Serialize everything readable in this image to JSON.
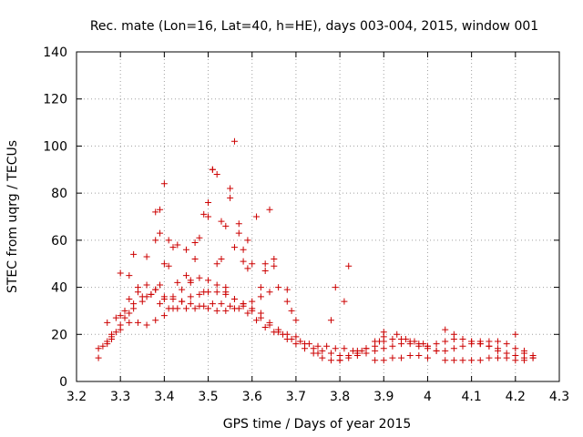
{
  "chart_data": {
    "type": "scatter",
    "title": "Rec. mate (Lon=16, Lat=40, h=HE), days 003-004, 2015, window 001",
    "xlabel": "GPS time / Days of year 2015",
    "ylabel": "STEC from uqrg / TECUs",
    "xlim": [
      3.2,
      4.3
    ],
    "ylim": [
      0,
      140
    ],
    "xticks": [
      "3.2",
      "3.3",
      "3.4",
      "3.5",
      "3.6",
      "3.7",
      "3.8",
      "3.9",
      "4",
      "4.1",
      "4.2",
      "4.3"
    ],
    "yticks": [
      "0",
      "20",
      "40",
      "60",
      "80",
      "100",
      "120",
      "140"
    ],
    "marker": "+",
    "color": "#cc0000",
    "grid": true,
    "series": [
      {
        "name": "STEC",
        "x": [
          3.25,
          3.25,
          3.26,
          3.27,
          3.28,
          3.29,
          3.3,
          3.31,
          3.32,
          3.33,
          3.35,
          3.37,
          3.38,
          3.39,
          3.4,
          3.42,
          3.44,
          3.46,
          3.48,
          3.5,
          3.52,
          3.54,
          3.56,
          3.58,
          3.6,
          3.62,
          3.64,
          3.66,
          3.68,
          3.7,
          3.27,
          3.28,
          3.3,
          3.32,
          3.34,
          3.36,
          3.38,
          3.4,
          3.42,
          3.44,
          3.46,
          3.48,
          3.5,
          3.52,
          3.54,
          3.56,
          3.58,
          3.6,
          3.62,
          3.64,
          3.66,
          3.68,
          3.7,
          3.72,
          3.74,
          3.76,
          3.78,
          3.8,
          3.27,
          3.29,
          3.31,
          3.33,
          3.35,
          3.37,
          3.39,
          3.41,
          3.43,
          3.45,
          3.47,
          3.49,
          3.51,
          3.53,
          3.55,
          3.57,
          3.59,
          3.61,
          3.63,
          3.65,
          3.67,
          3.69,
          3.71,
          3.73,
          3.75,
          3.77,
          3.79,
          3.81,
          3.83,
          3.85,
          3.28,
          3.3,
          3.32,
          3.34,
          3.36,
          3.38,
          3.4,
          3.42,
          3.44,
          3.46,
          3.48,
          3.5,
          3.52,
          3.54,
          3.56,
          3.58,
          3.6,
          3.62,
          3.64,
          3.66,
          3.68,
          3.7,
          3.72,
          3.74,
          3.76,
          3.78,
          3.8,
          3.82,
          3.84,
          3.86,
          3.88,
          3.9,
          3.3,
          3.33,
          3.36,
          3.38,
          3.39,
          3.4,
          3.41,
          3.43,
          3.45,
          3.47,
          3.49,
          3.5,
          3.51,
          3.52,
          3.53,
          3.54,
          3.55,
          3.56,
          3.57,
          3.58,
          3.59,
          3.6,
          3.62,
          3.63,
          3.64,
          3.65,
          3.68,
          3.69,
          3.75,
          3.82,
          3.81,
          3.79,
          3.78,
          3.38,
          3.39,
          3.4,
          3.41,
          3.42,
          3.5,
          3.51,
          3.52,
          3.53,
          3.54,
          3.55,
          3.57,
          3.56,
          3.58,
          3.59,
          3.61,
          3.63,
          3.65,
          3.47,
          3.48,
          3.49,
          3.43,
          3.45,
          3.46,
          3.36,
          3.34,
          3.32,
          3.8,
          3.82,
          3.84,
          3.86,
          3.88,
          3.9,
          3.92,
          3.94,
          3.96,
          3.98,
          4.0,
          4.02,
          4.04,
          4.06,
          4.08,
          4.1,
          4.12,
          4.14,
          4.16,
          4.18,
          4.2,
          4.22,
          4.24,
          3.84,
          3.86,
          3.88,
          3.9,
          3.92,
          3.94,
          3.96,
          3.98,
          4.0,
          4.02,
          4.04,
          4.06,
          4.08,
          4.1,
          4.12,
          4.14,
          4.16,
          4.18,
          4.2,
          4.22,
          4.24,
          3.88,
          3.9,
          3.92,
          3.94,
          3.96,
          3.98,
          4.0,
          4.04,
          4.06,
          4.08,
          4.1,
          4.12,
          4.14,
          4.16,
          4.18,
          4.2,
          4.22,
          4.24,
          4.04,
          4.06,
          4.08,
          4.1,
          4.12,
          4.14,
          4.16,
          4.2,
          4.22,
          3.89,
          3.9,
          3.93,
          3.95,
          3.97,
          3.99,
          4.0,
          4.02
        ],
        "y": [
          10,
          14,
          15,
          17,
          19,
          21,
          24,
          27,
          29,
          31,
          34,
          37,
          39,
          41,
          36,
          35,
          34,
          33,
          32,
          31,
          30,
          30,
          31,
          32,
          34,
          36,
          38,
          40,
          34,
          26,
          16,
          18,
          22,
          25,
          25,
          24,
          26,
          28,
          31,
          34,
          36,
          37,
          38,
          38,
          37,
          35,
          33,
          30,
          27,
          24,
          21,
          18,
          16,
          14,
          12,
          10,
          9,
          9,
          25,
          27,
          30,
          33,
          36,
          37,
          33,
          31,
          31,
          31,
          31,
          32,
          33,
          33,
          32,
          31,
          29,
          26,
          23,
          21,
          20,
          18,
          17,
          16,
          15,
          15,
          14,
          14,
          13,
          13,
          20,
          28,
          35,
          38,
          41,
          39,
          35,
          36,
          39,
          42,
          44,
          43,
          41,
          38,
          35,
          33,
          31,
          29,
          25,
          22,
          20,
          19,
          16,
          14,
          13,
          12,
          11,
          11,
          12,
          14,
          17,
          19,
          46,
          54,
          53,
          60,
          63,
          50,
          49,
          58,
          56,
          52,
          71,
          76,
          90,
          88,
          52,
          66,
          78,
          102,
          67,
          56,
          60,
          50,
          40,
          47,
          73,
          49,
          39,
          30,
          12,
          49,
          34,
          40,
          26,
          72,
          73,
          84,
          60,
          57,
          70,
          90,
          50,
          68,
          40,
          82,
          63,
          57,
          51,
          48,
          70,
          50,
          52,
          59,
          61,
          38,
          42,
          45,
          43,
          36,
          40,
          45,
          9,
          10,
          11,
          12,
          13,
          14,
          15,
          16,
          16,
          15,
          14,
          13,
          13,
          14,
          15,
          16,
          17,
          17,
          17,
          16,
          14,
          12,
          11,
          13,
          14,
          15,
          17,
          18,
          18,
          17,
          16,
          15,
          16,
          17,
          18,
          18,
          17,
          16,
          15,
          13,
          12,
          11,
          10,
          10,
          9,
          9,
          10,
          10,
          11,
          11,
          10,
          9,
          9,
          9,
          9,
          9,
          10,
          10,
          10,
          9,
          9,
          10,
          22,
          20,
          18,
          17,
          16,
          15,
          14,
          20,
          13,
          17,
          21,
          20,
          18,
          17,
          16,
          15,
          13
        ]
      }
    ]
  }
}
